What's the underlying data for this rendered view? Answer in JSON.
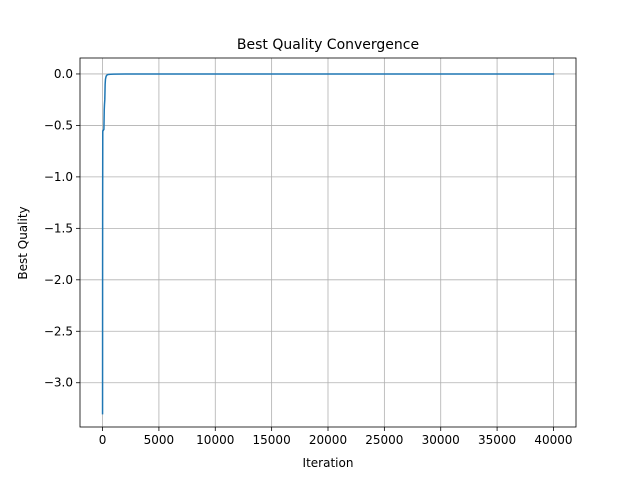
{
  "chart_data": {
    "type": "line",
    "title": "Best Quality Convergence",
    "xlabel": "Iteration",
    "ylabel": "Best Quality",
    "xlim": [
      -2000,
      42000
    ],
    "ylim": [
      -3.43,
      0.155
    ],
    "xticks": [
      0,
      5000,
      10000,
      15000,
      20000,
      25000,
      30000,
      35000,
      40000
    ],
    "yticks": [
      0.0,
      -0.5,
      -1.0,
      -1.5,
      -2.0,
      -2.5,
      -3.0
    ],
    "ytick_labels": [
      "0.0",
      "−0.5",
      "−1.0",
      "−1.5",
      "−2.0",
      "−2.5",
      "−3.0"
    ],
    "grid": true,
    "series": [
      {
        "color": "#1f77b4",
        "x": [
          0,
          2,
          5,
          10,
          20,
          40,
          70,
          100,
          120,
          150,
          170,
          200,
          230,
          260,
          300,
          330,
          400,
          500,
          700,
          1000,
          2000,
          5000,
          10000,
          20000,
          30000,
          40000
        ],
        "y": [
          -3.3,
          -2.9,
          -1.9,
          -1.2,
          -0.56,
          -0.55,
          -0.55,
          -0.54,
          -0.54,
          -0.35,
          -0.3,
          -0.25,
          -0.1,
          -0.05,
          -0.03,
          -0.02,
          -0.01,
          -0.005,
          -0.003,
          -0.002,
          -0.001,
          -0.0005,
          -0.0002,
          -0.0001,
          0.0,
          0.0
        ]
      }
    ]
  }
}
